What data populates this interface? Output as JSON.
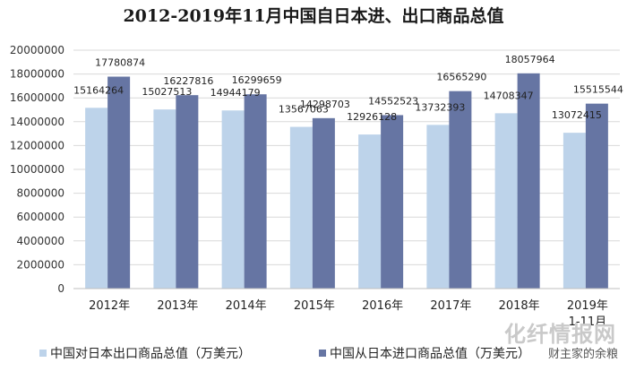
{
  "chart_data": {
    "type": "bar",
    "title": "2012-2019年11月中国自日本进、出口商品总值",
    "categories": [
      "2012年",
      "2013年",
      "2014年",
      "2015年",
      "2016年",
      "2017年",
      "2018年",
      "2019年\n1-11月"
    ],
    "series": [
      {
        "name": "中国对日本出口商品总值（万美元）",
        "color": "#bdd3ea",
        "values": [
          15164264,
          15027513,
          14944179,
          13567063,
          12926128,
          13732393,
          14708347,
          13072415
        ]
      },
      {
        "name": "中国从日本进口商品总值（万美元）",
        "color": "#6675a3",
        "values": [
          17780874,
          16227816,
          16299659,
          14298703,
          14552523,
          16565290,
          18057964,
          15515544
        ]
      }
    ],
    "ylim": [
      0,
      20000000
    ],
    "yticks": [
      0,
      2000000,
      4000000,
      6000000,
      8000000,
      10000000,
      12000000,
      14000000,
      16000000,
      18000000,
      20000000
    ],
    "grid": true,
    "legend": "bottom"
  },
  "watermark": {
    "brand": "化纤情报网",
    "caption": "财主家的余粮"
  }
}
